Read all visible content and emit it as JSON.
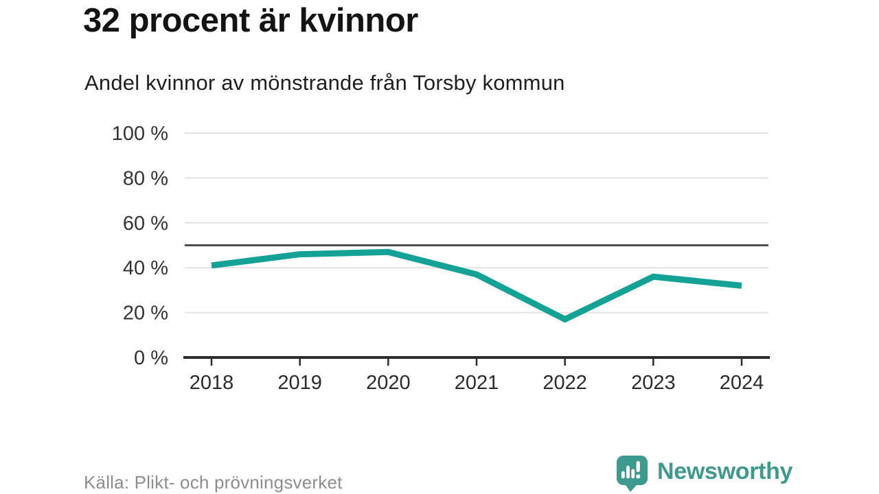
{
  "header": {
    "title": "32 procent är kvinnor",
    "subtitle": "Andel kvinnor av mönstrande från Torsby kommun"
  },
  "chart_data": {
    "type": "line",
    "title": "32 procent är kvinnor",
    "subtitle": "Andel kvinnor av mönstrande från Torsby kommun",
    "x": [
      2018,
      2019,
      2020,
      2021,
      2022,
      2023,
      2024
    ],
    "series": [
      {
        "name": "Andel kvinnor av mönstrande",
        "values": [
          41,
          46,
          47,
          37,
          17,
          36,
          32
        ]
      }
    ],
    "xlabel": "",
    "ylabel": "",
    "ylim": [
      0,
      100
    ],
    "yticks": [
      0,
      20,
      40,
      60,
      80,
      100
    ],
    "ytick_format": "{v} %",
    "reference_line": 50,
    "grid": true,
    "legend_position": "none",
    "line_color": "#14a296",
    "grid_color": "#e2e2e2",
    "axis_color": "#2b2b2b",
    "reference_line_color": "#4d4d4d",
    "tick_label_color": "#333333"
  },
  "footer": {
    "source": "Källa: Plikt- och prövningsverket",
    "brand": "Newsworthy",
    "brand_color": "#3e9a8e"
  }
}
